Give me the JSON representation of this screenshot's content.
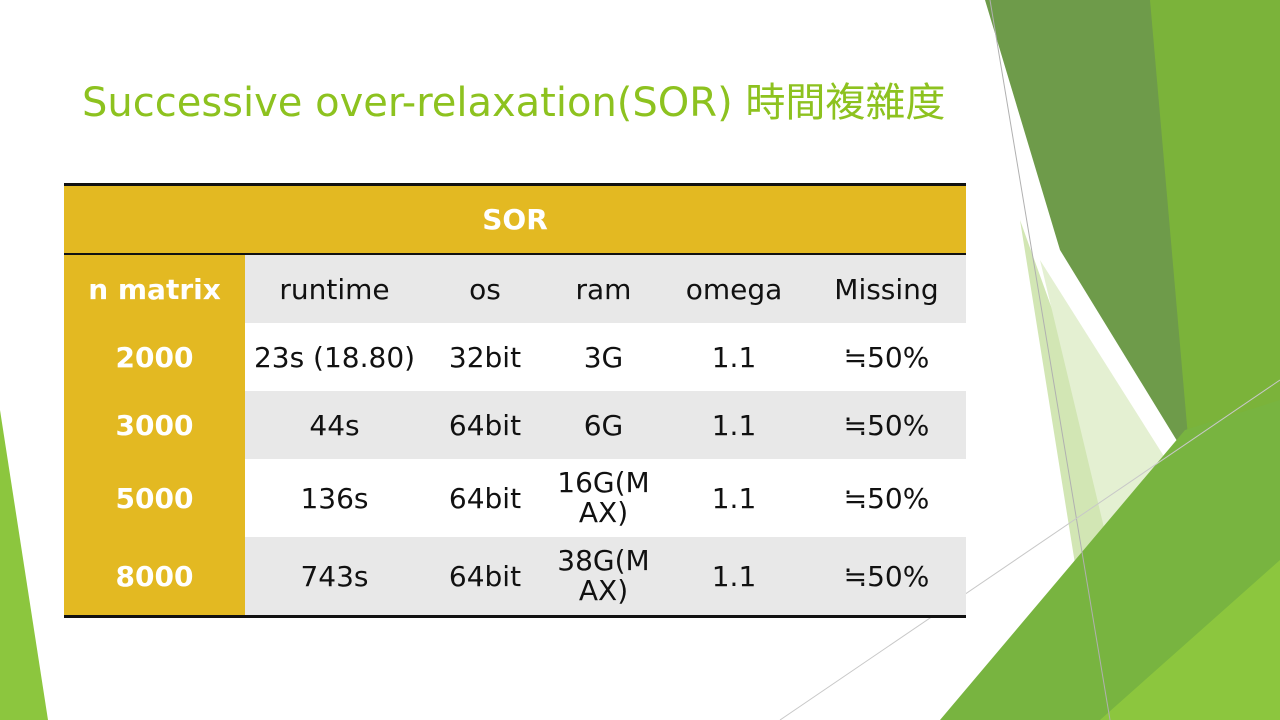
{
  "slide": {
    "title": "Successive over-relaxation(SOR)  時間複雜度"
  },
  "table": {
    "caption": "SOR",
    "columns": [
      "n matrix",
      "runtime",
      "os",
      "ram",
      "omega",
      "Missing"
    ],
    "rows": [
      {
        "n": "2000",
        "runtime": "23s (18.80)",
        "os": "32bit",
        "ram": "3G",
        "omega": "1.1",
        "missing": "≒50%"
      },
      {
        "n": "3000",
        "runtime": "44s",
        "os": "64bit",
        "ram": "6G",
        "omega": "1.1",
        "missing": "≒50%"
      },
      {
        "n": "5000",
        "runtime": "136s",
        "os": "64bit",
        "ram": "16G(MAX)",
        "omega": "1.1",
        "missing": "≒50%"
      },
      {
        "n": "8000",
        "runtime": "743s",
        "os": "64bit",
        "ram": "38G(MAX)",
        "omega": "1.1",
        "missing": "≒50%"
      }
    ]
  },
  "colors": {
    "title_green": "#8dc21f",
    "header_gold": "#e3b922",
    "row_gray": "#e8e8e8"
  }
}
